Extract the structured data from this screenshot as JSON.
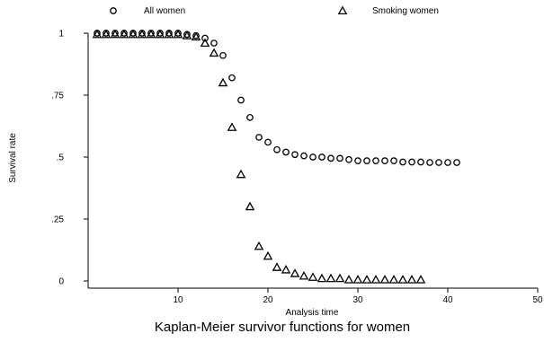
{
  "chart_data": {
    "type": "scatter",
    "title": "",
    "caption": "Kaplan-Meier survivor functions for women",
    "xlabel": "Analysis time",
    "ylabel": "Survival rate",
    "xlim": [
      0,
      50
    ],
    "ylim": [
      0,
      1
    ],
    "x_ticks": [
      10,
      20,
      30,
      40,
      50
    ],
    "x_tick_labels": [
      "10",
      "20",
      "30",
      "40",
      "50"
    ],
    "y_ticks": [
      0,
      0.25,
      0.5,
      0.75,
      1
    ],
    "y_tick_labels": [
      "0",
      ".25",
      ".5",
      ".75",
      "1"
    ],
    "grid": false,
    "legend_position": "top",
    "series": [
      {
        "name": "All women",
        "marker": "circle",
        "color": "#000000",
        "x": [
          1,
          2,
          3,
          4,
          5,
          6,
          7,
          8,
          9,
          10,
          11,
          12,
          13,
          14,
          15,
          16,
          17,
          18,
          19,
          20,
          21,
          22,
          23,
          24,
          25,
          26,
          27,
          28,
          29,
          30,
          31,
          32,
          33,
          34,
          35,
          36,
          37,
          38,
          39,
          40,
          41
        ],
        "y": [
          1.0,
          1.0,
          1.0,
          1.0,
          1.0,
          1.0,
          1.0,
          1.0,
          1.0,
          1.0,
          0.995,
          0.99,
          0.98,
          0.96,
          0.91,
          0.82,
          0.73,
          0.66,
          0.58,
          0.56,
          0.53,
          0.52,
          0.51,
          0.505,
          0.5,
          0.5,
          0.495,
          0.495,
          0.49,
          0.485,
          0.485,
          0.485,
          0.485,
          0.485,
          0.48,
          0.48,
          0.48,
          0.478,
          0.478,
          0.478,
          0.478
        ]
      },
      {
        "name": "Smoking women",
        "marker": "triangle",
        "color": "#000000",
        "x": [
          1,
          2,
          3,
          4,
          5,
          6,
          7,
          8,
          9,
          10,
          11,
          12,
          13,
          14,
          15,
          16,
          17,
          18,
          19,
          20,
          21,
          22,
          23,
          24,
          25,
          26,
          27,
          28,
          29,
          30,
          31,
          32,
          33,
          34,
          35,
          36,
          37
        ],
        "y": [
          0.995,
          0.995,
          0.995,
          0.995,
          0.995,
          0.995,
          0.995,
          0.995,
          0.995,
          0.995,
          0.99,
          0.985,
          0.96,
          0.92,
          0.8,
          0.62,
          0.43,
          0.3,
          0.14,
          0.1,
          0.055,
          0.045,
          0.03,
          0.02,
          0.015,
          0.01,
          0.01,
          0.01,
          0.005,
          0.005,
          0.005,
          0.005,
          0.005,
          0.005,
          0.005,
          0.005,
          0.005
        ]
      }
    ]
  }
}
